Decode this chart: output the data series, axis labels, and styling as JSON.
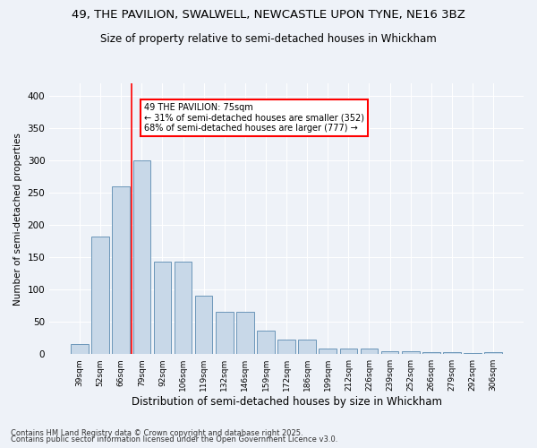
{
  "title1": "49, THE PAVILION, SWALWELL, NEWCASTLE UPON TYNE, NE16 3BZ",
  "title2": "Size of property relative to semi-detached houses in Whickham",
  "xlabel": "Distribution of semi-detached houses by size in Whickham",
  "ylabel": "Number of semi-detached properties",
  "categories": [
    "39sqm",
    "52sqm",
    "66sqm",
    "79sqm",
    "92sqm",
    "106sqm",
    "119sqm",
    "132sqm",
    "146sqm",
    "159sqm",
    "172sqm",
    "186sqm",
    "199sqm",
    "212sqm",
    "226sqm",
    "239sqm",
    "252sqm",
    "266sqm",
    "279sqm",
    "292sqm",
    "306sqm"
  ],
  "values": [
    15,
    183,
    260,
    300,
    143,
    143,
    90,
    65,
    65,
    37,
    22,
    22,
    8,
    9,
    9,
    4,
    4,
    3,
    3,
    2,
    3
  ],
  "bar_color": "#c8d8e8",
  "bar_edge_color": "#5a8ab0",
  "vline_x": 2.5,
  "vline_color": "red",
  "annotation_title": "49 THE PAVILION: 75sqm",
  "annotation_line1": "← 31% of semi-detached houses are smaller (352)",
  "annotation_line2": "68% of semi-detached houses are larger (777) →",
  "annotation_box_color": "red",
  "footnote1": "Contains HM Land Registry data © Crown copyright and database right 2025.",
  "footnote2": "Contains public sector information licensed under the Open Government Licence v3.0.",
  "background_color": "#eef2f8",
  "ylim": [
    0,
    420
  ],
  "title1_fontsize": 9.5,
  "title2_fontsize": 8.5
}
